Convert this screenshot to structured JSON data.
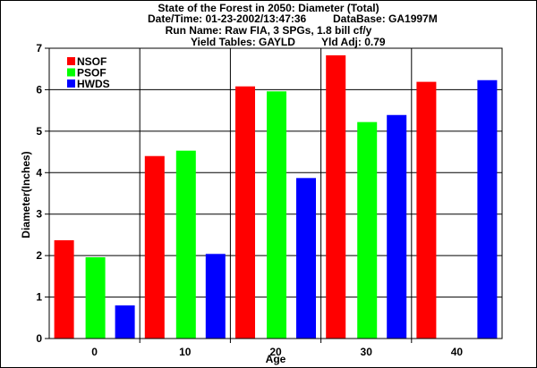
{
  "header": {
    "title_line_1": "State of the Forest in 2050: Diameter (Total)",
    "date_time_label": "Date/Time: 01-23-2002/13:47:36",
    "database_label": "DataBase: GA1997M",
    "run_name_label": "Run Name: Raw FIA, 3 SPGs, 1.8 bill cf/y",
    "yield_tables_label": "Yield Tables: GAYLD",
    "yield_adj_label": "Yld Adj: 0.79"
  },
  "colors": {
    "NSOF": "#ff0000",
    "PSOF": "#00ff00",
    "HWDS": "#0000ff",
    "grid": "#000000",
    "background": "#ffffff"
  },
  "chart_data": {
    "type": "bar",
    "title": "State of the Forest in 2050: Diameter (Total)",
    "xlabel": "Age",
    "ylabel": "Diameter(Inches)",
    "categories": [
      "0",
      "10",
      "20",
      "30",
      "40"
    ],
    "ylim": [
      0,
      7
    ],
    "yticks": [
      "0",
      "1",
      "2",
      "3",
      "4",
      "5",
      "6",
      "7"
    ],
    "grid": true,
    "legend_position": "top-left",
    "series": [
      {
        "name": "NSOF",
        "values": [
          2.37,
          4.4,
          6.08,
          6.83,
          6.19
        ]
      },
      {
        "name": "PSOF",
        "values": [
          1.96,
          4.53,
          5.96,
          5.22,
          null
        ]
      },
      {
        "name": "HWDS",
        "values": [
          0.8,
          2.04,
          3.87,
          5.39,
          6.23
        ]
      }
    ]
  }
}
